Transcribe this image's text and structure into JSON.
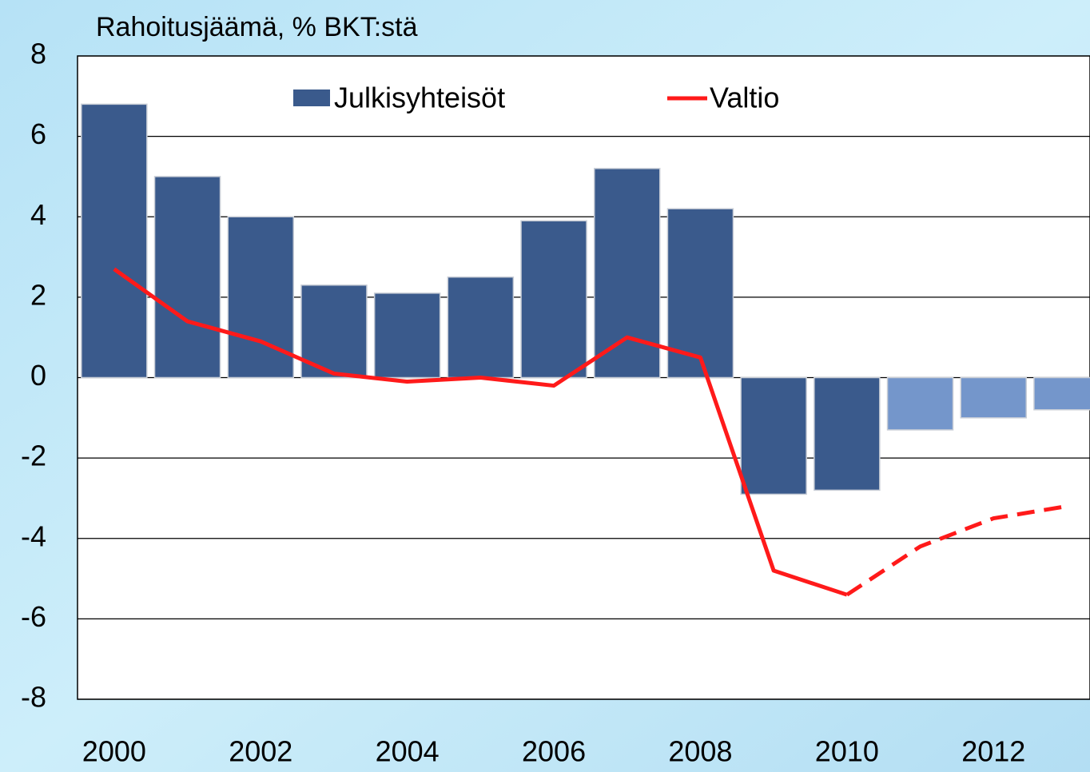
{
  "chart_data": {
    "type": "bar_line",
    "title": "Rahoitusjäämä, % BKT:stä",
    "categories": [
      "2000",
      null,
      "2002",
      null,
      "2004",
      null,
      "2006",
      null,
      "2008",
      null,
      "2010",
      null,
      "2012",
      null
    ],
    "series": [
      {
        "name": "Julkisyhteisöt",
        "type": "bar",
        "color": "#3a5a8c",
        "colors": [
          "#3a5a8c",
          "#3a5a8c",
          "#3a5a8c",
          "#3a5a8c",
          "#3a5a8c",
          "#3a5a8c",
          "#3a5a8c",
          "#3a5a8c",
          "#3a5a8c",
          "#3a5a8c",
          "#3a5a8c",
          "#7496cb",
          "#7496cb",
          "#7496cb"
        ],
        "values": [
          6.8,
          5.0,
          4.0,
          2.3,
          2.1,
          2.5,
          3.9,
          5.2,
          4.2,
          -2.9,
          -2.8,
          -1.3,
          -1.0,
          -0.8
        ]
      },
      {
        "name": "Valtio",
        "type": "line",
        "color": "#ff1a1a",
        "dashed_from_index": 10,
        "values": [
          2.7,
          1.4,
          0.9,
          0.1,
          -0.1,
          0.0,
          -0.2,
          1.0,
          0.5,
          -4.8,
          -5.4,
          -4.2,
          -3.5,
          -3.2
        ]
      }
    ],
    "ylim": [
      -8,
      8
    ],
    "yticks": [
      -8,
      -6,
      -4,
      -2,
      0,
      2,
      4,
      6,
      8
    ],
    "grid": true
  }
}
